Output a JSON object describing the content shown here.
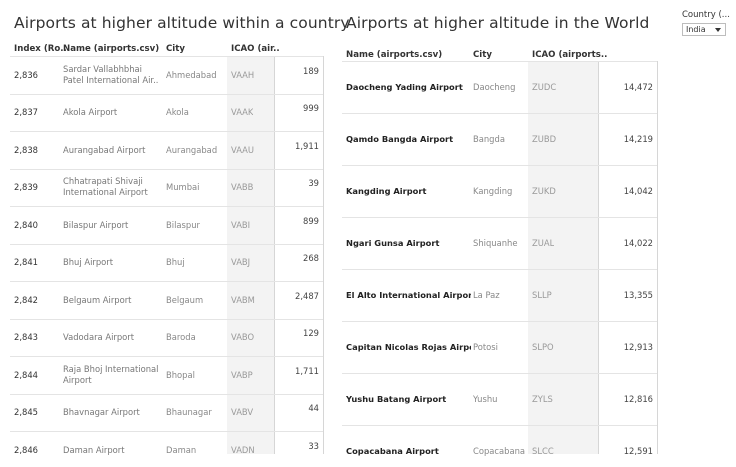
{
  "left": {
    "title": "Airports at higher altitude within a country",
    "headers": [
      "Index (Ro..",
      "Name (airports.csv)",
      "City",
      "ICAO (air.."
    ],
    "rows": [
      {
        "index": "2,836",
        "name": "Sardar Vallabhbhai Patel International Air..",
        "city": "Ahmedabad",
        "icao": "VAAH",
        "value": "189"
      },
      {
        "index": "2,837",
        "name": "Akola Airport",
        "city": "Akola",
        "icao": "VAAK",
        "value": "999"
      },
      {
        "index": "2,838",
        "name": "Aurangabad Airport",
        "city": "Aurangabad",
        "icao": "VAAU",
        "value": "1,911"
      },
      {
        "index": "2,839",
        "name": "Chhatrapati Shivaji International Airport",
        "city": "Mumbai",
        "icao": "VABB",
        "value": "39"
      },
      {
        "index": "2,840",
        "name": "Bilaspur Airport",
        "city": "Bilaspur",
        "icao": "VABI",
        "value": "899"
      },
      {
        "index": "2,841",
        "name": "Bhuj Airport",
        "city": "Bhuj",
        "icao": "VABJ",
        "value": "268"
      },
      {
        "index": "2,842",
        "name": "Belgaum Airport",
        "city": "Belgaum",
        "icao": "VABM",
        "value": "2,487"
      },
      {
        "index": "2,843",
        "name": "Vadodara Airport",
        "city": "Baroda",
        "icao": "VABO",
        "value": "129"
      },
      {
        "index": "2,844",
        "name": "Raja Bhoj International Airport",
        "city": "Bhopal",
        "icao": "VABP",
        "value": "1,711"
      },
      {
        "index": "2,845",
        "name": "Bhavnagar Airport",
        "city": "Bhaunagar",
        "icao": "VABV",
        "value": "44"
      },
      {
        "index": "2,846",
        "name": "Daman Airport",
        "city": "Daman",
        "icao": "VADN",
        "value": "33"
      }
    ]
  },
  "right": {
    "title": "Airports at higher altitude in the World",
    "headers": [
      "Name (airports.csv)",
      "City",
      "ICAO (airports.."
    ],
    "rows": [
      {
        "name": "Daocheng Yading Airport",
        "city": "Daocheng",
        "icao": "ZUDC",
        "value": "14,472"
      },
      {
        "name": "Qamdo Bangda Airport",
        "city": "Bangda",
        "icao": "ZUBD",
        "value": "14,219"
      },
      {
        "name": "Kangding Airport",
        "city": "Kangding",
        "icao": "ZUKD",
        "value": "14,042"
      },
      {
        "name": "Ngari Gunsa Airport",
        "city": "Shiquanhe",
        "icao": "ZUAL",
        "value": "14,022"
      },
      {
        "name": "El Alto International Airport",
        "city": "La Paz",
        "icao": "SLLP",
        "value": "13,355"
      },
      {
        "name": "Capitan Nicolas Rojas Airport",
        "city": "Potosi",
        "icao": "SLPO",
        "value": "12,913"
      },
      {
        "name": "Yushu Batang Airport",
        "city": "Yushu",
        "icao": "ZYLS",
        "value": "12,816"
      },
      {
        "name": "Copacabana Airport",
        "city": "Copacabana",
        "icao": "SLCC",
        "value": "12,591"
      }
    ]
  },
  "filter": {
    "label": "Country (...",
    "value": "India"
  }
}
